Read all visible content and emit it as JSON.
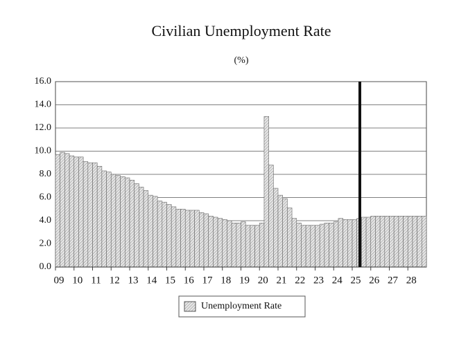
{
  "chart_data": {
    "type": "bar",
    "title": "Civilian Unemployment Rate",
    "subtitle": "(%)",
    "categories": [
      "09",
      null,
      null,
      null,
      "10",
      null,
      null,
      null,
      "11",
      null,
      null,
      null,
      "12",
      null,
      null,
      null,
      "13",
      null,
      null,
      null,
      "14",
      null,
      null,
      null,
      "15",
      null,
      null,
      null,
      "16",
      null,
      null,
      null,
      "17",
      null,
      null,
      null,
      "18",
      null,
      null,
      null,
      "19",
      null,
      null,
      null,
      "20",
      null,
      null,
      null,
      "21",
      null,
      null,
      null,
      "22",
      null,
      null,
      null,
      "23",
      null,
      null,
      null,
      "24",
      null,
      null,
      null,
      "25",
      null,
      null,
      null,
      "26",
      null,
      null,
      null,
      "27",
      null,
      null,
      null,
      "28",
      null,
      null,
      null
    ],
    "series": [
      {
        "name": "Unemployment Rate",
        "values": [
          9.7,
          9.9,
          9.8,
          9.6,
          9.5,
          9.5,
          9.1,
          9.0,
          9.0,
          8.7,
          8.3,
          8.2,
          8.0,
          7.9,
          7.8,
          7.7,
          7.5,
          7.2,
          6.9,
          6.6,
          6.2,
          6.1,
          5.7,
          5.6,
          5.4,
          5.2,
          5.0,
          5.0,
          4.9,
          4.9,
          4.9,
          4.7,
          4.6,
          4.4,
          4.3,
          4.2,
          4.1,
          4.0,
          3.8,
          3.8,
          3.9,
          3.6,
          3.6,
          3.6,
          3.8,
          13.0,
          8.8,
          6.8,
          6.2,
          5.9,
          5.1,
          4.2,
          3.8,
          3.6,
          3.6,
          3.6,
          3.6,
          3.7,
          3.8,
          3.8,
          3.9,
          4.2,
          4.1,
          4.1,
          4.1,
          4.2,
          4.3,
          4.3,
          4.4,
          4.4,
          4.4,
          4.4,
          4.4,
          4.4,
          4.4,
          4.4,
          4.4,
          4.4,
          4.4,
          4.4
        ]
      }
    ],
    "ylim": [
      0,
      16
    ],
    "yticks": [
      {
        "value": 0,
        "label": "0.0"
      },
      {
        "value": 2,
        "label": "2.0"
      },
      {
        "value": 4,
        "label": "4.0"
      },
      {
        "value": 6,
        "label": "6.0"
      },
      {
        "value": 8,
        "label": "8.0"
      },
      {
        "value": 10,
        "label": "10.0"
      },
      {
        "value": 12,
        "label": "12.0"
      },
      {
        "value": 14,
        "label": "14.0"
      },
      {
        "value": 16,
        "label": "16.0"
      }
    ],
    "grid": true
  }
}
